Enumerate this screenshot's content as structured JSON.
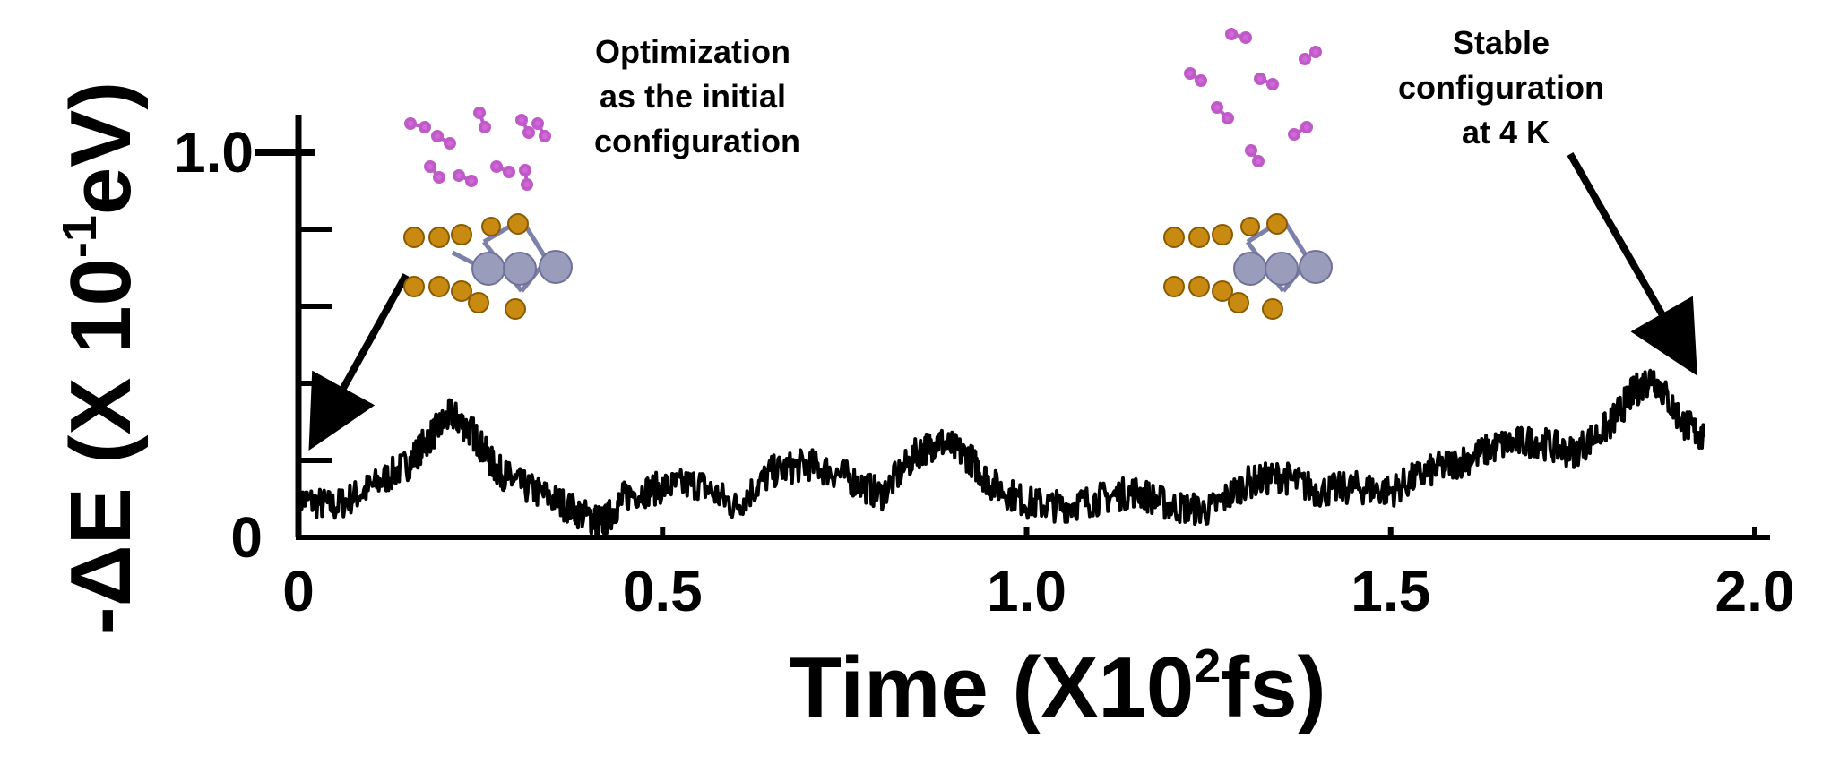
{
  "chart_data": {
    "type": "line",
    "xlabel": {
      "main": "Time (X10",
      "sup": "2",
      "tail": "fs)"
    },
    "ylabel": {
      "main": "-ΔE (X 10",
      "sup": "-1",
      "tail": "eV)"
    },
    "xlim": [
      0,
      2.0
    ],
    "ylim": [
      0,
      1.0
    ],
    "xticks": [
      {
        "value": 0,
        "label": "0"
      },
      {
        "value": 0.5,
        "label": "0.5"
      },
      {
        "value": 1.0,
        "label": "1.0"
      },
      {
        "value": 1.5,
        "label": "1.5"
      },
      {
        "value": 2.0,
        "label": "2.0"
      }
    ],
    "yticks_labeled": [
      {
        "value": 0,
        "label": "0"
      },
      {
        "value": 1.0,
        "label": "1.0"
      }
    ],
    "yticks_minor": [
      0.2,
      0.4,
      0.6,
      0.8
    ],
    "series": [
      {
        "color": "#000000",
        "x": [
          0.0,
          0.05,
          0.1,
          0.15,
          0.18,
          0.21,
          0.24,
          0.27,
          0.3,
          0.35,
          0.4,
          0.42,
          0.45,
          0.5,
          0.55,
          0.6,
          0.65,
          0.7,
          0.75,
          0.8,
          0.85,
          0.88,
          0.92,
          0.95,
          1.0,
          1.05,
          1.1,
          1.15,
          1.2,
          1.25,
          1.3,
          1.35,
          1.4,
          1.45,
          1.5,
          1.55,
          1.6,
          1.65,
          1.7,
          1.75,
          1.8,
          1.83,
          1.86,
          1.9,
          1.93
        ],
        "y": [
          0.1,
          0.08,
          0.13,
          0.19,
          0.26,
          0.32,
          0.27,
          0.18,
          0.14,
          0.1,
          0.05,
          0.04,
          0.11,
          0.13,
          0.14,
          0.08,
          0.17,
          0.19,
          0.16,
          0.11,
          0.22,
          0.25,
          0.21,
          0.14,
          0.09,
          0.08,
          0.1,
          0.12,
          0.08,
          0.07,
          0.14,
          0.16,
          0.12,
          0.13,
          0.12,
          0.17,
          0.2,
          0.24,
          0.25,
          0.22,
          0.29,
          0.37,
          0.42,
          0.3,
          0.26
        ]
      }
    ],
    "annotations": [
      {
        "lines": [
          "Optimization",
          "as the initial",
          "configuration"
        ]
      },
      {
        "lines": [
          "Stable",
          "configuration",
          "at 4 K"
        ]
      }
    ]
  }
}
